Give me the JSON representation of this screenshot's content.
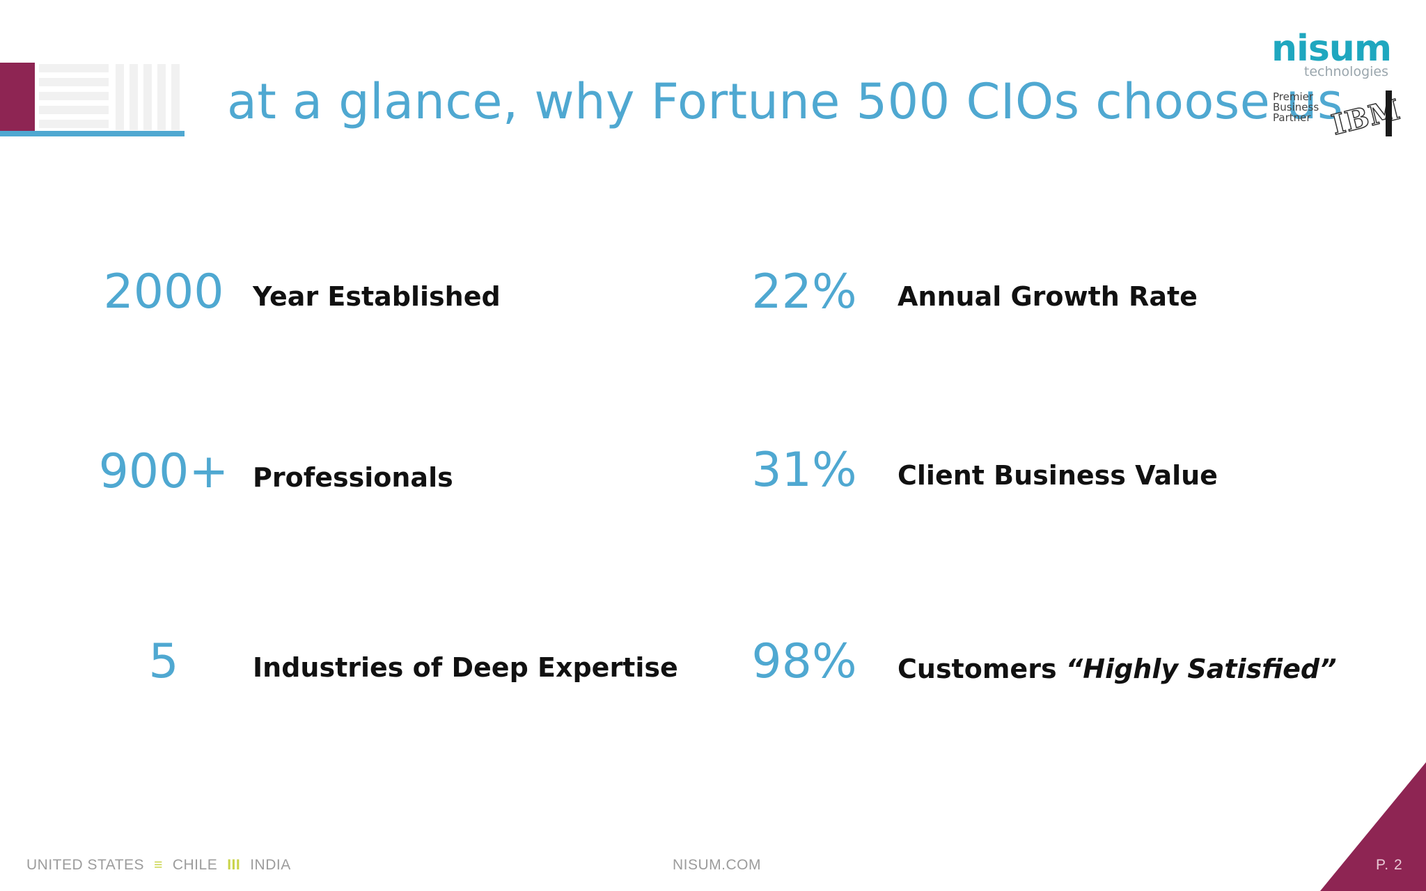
{
  "title": "at a glance, why Fortune 500 CIOs choose us",
  "logo": {
    "name": "nisum",
    "subtitle": "technologies",
    "partner_lines": [
      "Premier",
      "Business",
      "Partner"
    ],
    "partner_brand": "IBM"
  },
  "stats": [
    {
      "value": "2000",
      "label": "Year Established"
    },
    {
      "value": "900+",
      "label": "Professionals"
    },
    {
      "value": "5",
      "label": "Industries of Deep Expertise"
    },
    {
      "value": "22%",
      "label": "Annual Growth Rate"
    },
    {
      "value": "31%",
      "label": "Client Business Value"
    },
    {
      "value": "98%",
      "label_prefix": "Customers ",
      "label_quote": "“Highly Satisfied”"
    }
  ],
  "footer": {
    "countries": [
      "UNITED STATES",
      "CHILE",
      "INDIA"
    ],
    "separators": [
      "≡",
      "III"
    ],
    "site": "NISUM.COM",
    "page": "P.  2"
  },
  "colors": {
    "accent_blue": "#4fa8d1",
    "brand_maroon": "#8e2553",
    "separator_green": "#c9d44a"
  }
}
